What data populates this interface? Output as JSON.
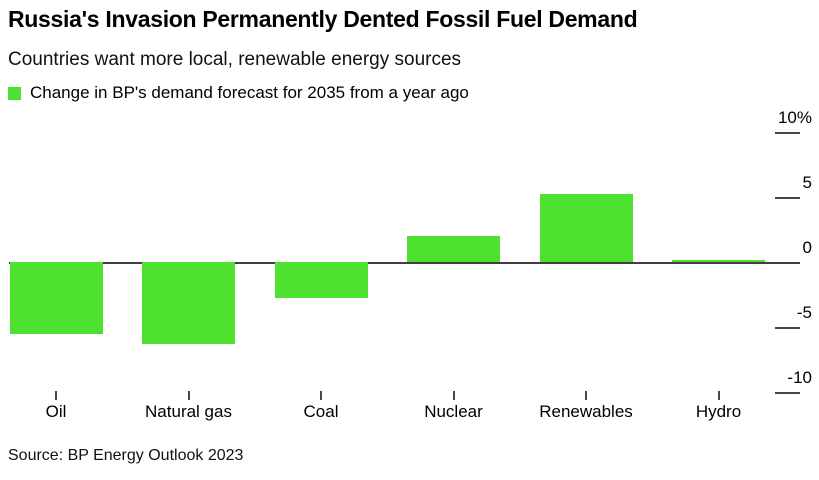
{
  "header": {
    "title": "Russia's Invasion Permanently Dented Fossil Fuel Demand",
    "subtitle": "Countries want more local, renewable energy sources"
  },
  "legend": {
    "label": "Change in BP's demand forecast for 2035 from a year ago",
    "swatch_color": "#4de02e"
  },
  "chart_data": {
    "type": "bar",
    "title": "Russia's Invasion Permanently Dented Fossil Fuel Demand",
    "subtitle": "Countries want more local, renewable energy sources",
    "series_name": "Change in BP's demand forecast for 2035 from a year ago",
    "categories": [
      "Oil",
      "Natural gas",
      "Coal",
      "Nuclear",
      "Renewables",
      "Hydro"
    ],
    "values": [
      -5.5,
      -6.3,
      -2.8,
      2.0,
      5.2,
      0.1
    ],
    "unit": "%",
    "bar_color": "#4de02e",
    "xlabel": "",
    "ylabel": "",
    "ylim": [
      -10,
      10
    ],
    "yticks": [
      {
        "label": "10%",
        "value": 10
      },
      {
        "label": "5",
        "value": 5
      },
      {
        "label": "0",
        "value": 0
      },
      {
        "label": "-5",
        "value": -5
      },
      {
        "label": "-10",
        "value": -10
      }
    ],
    "grid": false,
    "legend_position": "top-left",
    "y_axis_side": "right"
  },
  "source": {
    "text": "Source: BP Energy Outlook 2023"
  }
}
